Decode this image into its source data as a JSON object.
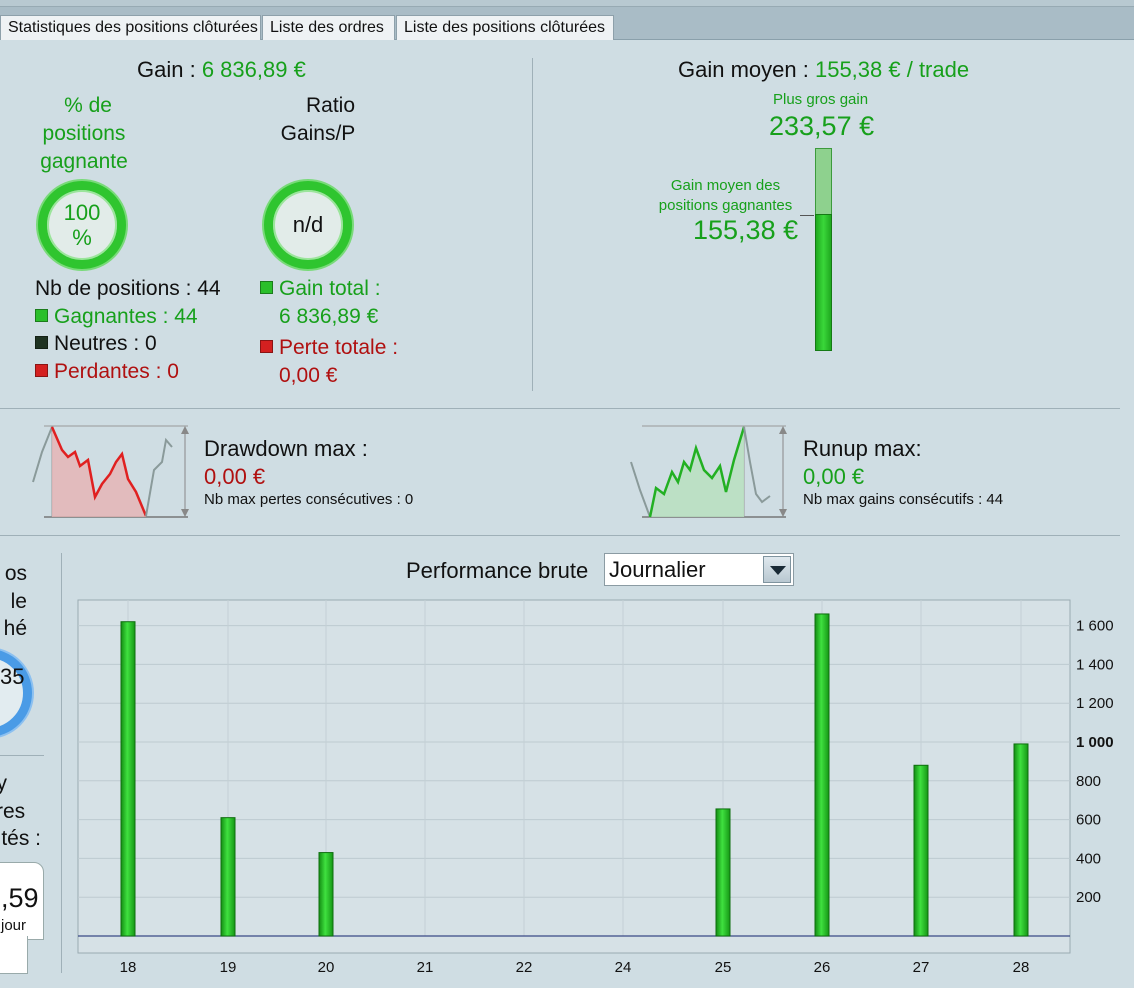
{
  "tabs": [
    "Statistiques des positions clôturées",
    "Liste des ordres",
    "Liste des positions clôturées"
  ],
  "gain": {
    "label": "Gain :",
    "value": "6 836,89 €"
  },
  "win_pct": {
    "label_lines": [
      "% de",
      "positions",
      "gagnante"
    ],
    "ring_lines": [
      "100",
      "%"
    ]
  },
  "ratio": {
    "label_lines": [
      "Ratio",
      "Gains/Pe"
    ],
    "ring_text": "n/d"
  },
  "positions": {
    "count": "Nb de positions : 44",
    "winners": "Gagnantes : 44",
    "neutral": "Neutres : 0",
    "losers": "Perdantes : 0"
  },
  "totals": {
    "gain_label": "Gain total :",
    "gain_value": "6 836,89 €",
    "loss_label": "Perte totale :",
    "loss_value": "0,00 €"
  },
  "avg_gain": {
    "label": "Gain moyen :",
    "value": "155,38 € / trade"
  },
  "best_gain": {
    "label": "Plus gros gain",
    "value": "233,57 €"
  },
  "avg_win": {
    "label_lines": [
      "Gain moyen des",
      "positions gagnantes"
    ],
    "value": "155,38 €"
  },
  "drawdown": {
    "title": "Drawdown max :",
    "value": "0,00 €",
    "sub": "Nb max pertes consécutives : 0"
  },
  "runup": {
    "title": "Runup max:",
    "value": "0,00 €",
    "sub": "Nb max gains consécutifs : 44"
  },
  "left_partial": {
    "lines_a": [
      "os",
      "le",
      "hé"
    ],
    "ring_partial": "35",
    "lines_b": [
      "y",
      "res",
      "tés :"
    ],
    "box_value": ",59",
    "box_sub": "jour"
  },
  "perf": {
    "label": "Performance brute",
    "period": "Journalier"
  },
  "colors": {
    "green": "#17a01b",
    "red": "#b01010",
    "bar": "#22c322"
  },
  "chart_data": {
    "type": "bar",
    "categories": [
      "18",
      "19",
      "20",
      "21",
      "22",
      "24",
      "25",
      "26",
      "27",
      "28"
    ],
    "values": [
      1620,
      610,
      430,
      0,
      0,
      0,
      655,
      1660,
      880,
      990
    ],
    "y_ticks": [
      "200",
      "400",
      "600",
      "800",
      "1 000",
      "1 200",
      "1 400",
      "1 600"
    ],
    "ylim": [
      0,
      1760
    ],
    "grid": true
  }
}
